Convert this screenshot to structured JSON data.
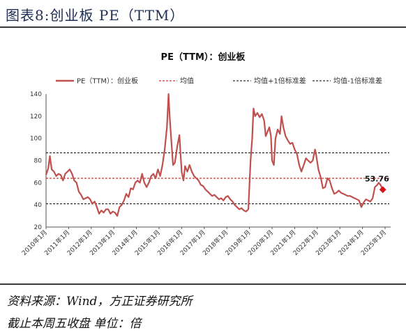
{
  "figure": {
    "title": "图表8:创业板 PE（TTM）",
    "source": "资料来源：Wind，方正证券研究所",
    "note": "截止本周五收盘  单位：倍"
  },
  "chart_data": {
    "type": "line",
    "title": "PE（TTM）：创业板",
    "xlabel": "",
    "ylabel": "",
    "ylim": [
      20,
      140
    ],
    "yticks": [
      20,
      40,
      60,
      80,
      100,
      120,
      140
    ],
    "xticks": [
      "2010年1月",
      "2011年1月",
      "2012年1月",
      "2013年1月",
      "2014年1月",
      "2015年1月",
      "2016年1月",
      "2017年1月",
      "2018年1月",
      "2019年1月",
      "2020年1月",
      "2021年1月",
      "2022年1月",
      "2023年1月",
      "2024年1月",
      "2025年1月"
    ],
    "legend_position": "top",
    "grid": false,
    "series": [
      {
        "name": "PE（TTM）：创业板",
        "color": "#c0504d",
        "points": [
          [
            2010.0,
            67
          ],
          [
            2010.1,
            73
          ],
          [
            2010.17,
            84
          ],
          [
            2010.25,
            72
          ],
          [
            2010.35,
            70
          ],
          [
            2010.45,
            66
          ],
          [
            2010.55,
            68
          ],
          [
            2010.65,
            67
          ],
          [
            2010.75,
            62
          ],
          [
            2010.85,
            68
          ],
          [
            2010.95,
            70
          ],
          [
            2011.05,
            72
          ],
          [
            2011.15,
            68
          ],
          [
            2011.25,
            62
          ],
          [
            2011.35,
            60
          ],
          [
            2011.45,
            52
          ],
          [
            2011.55,
            49
          ],
          [
            2011.65,
            45
          ],
          [
            2011.75,
            46
          ],
          [
            2011.85,
            47
          ],
          [
            2011.95,
            45
          ],
          [
            2012.05,
            41
          ],
          [
            2012.15,
            43
          ],
          [
            2012.25,
            38
          ],
          [
            2012.35,
            32
          ],
          [
            2012.45,
            35
          ],
          [
            2012.55,
            33
          ],
          [
            2012.65,
            36
          ],
          [
            2012.75,
            36
          ],
          [
            2012.85,
            32
          ],
          [
            2012.95,
            34
          ],
          [
            2013.05,
            33
          ],
          [
            2013.15,
            30
          ],
          [
            2013.25,
            38
          ],
          [
            2013.35,
            40
          ],
          [
            2013.45,
            44
          ],
          [
            2013.55,
            50
          ],
          [
            2013.65,
            47
          ],
          [
            2013.75,
            55
          ],
          [
            2013.85,
            54
          ],
          [
            2013.95,
            60
          ],
          [
            2014.05,
            62
          ],
          [
            2014.15,
            60
          ],
          [
            2014.25,
            68
          ],
          [
            2014.35,
            60
          ],
          [
            2014.45,
            56
          ],
          [
            2014.55,
            60
          ],
          [
            2014.65,
            66
          ],
          [
            2014.75,
            68
          ],
          [
            2014.85,
            64
          ],
          [
            2014.95,
            72
          ],
          [
            2015.05,
            66
          ],
          [
            2015.15,
            76
          ],
          [
            2015.25,
            90
          ],
          [
            2015.35,
            110
          ],
          [
            2015.42,
            140
          ],
          [
            2015.47,
            120
          ],
          [
            2015.55,
            96
          ],
          [
            2015.62,
            76
          ],
          [
            2015.7,
            78
          ],
          [
            2015.8,
            92
          ],
          [
            2015.9,
            103
          ],
          [
            2015.95,
            86
          ],
          [
            2016.0,
            70
          ],
          [
            2016.08,
            62
          ],
          [
            2016.15,
            75
          ],
          [
            2016.25,
            70
          ],
          [
            2016.35,
            76
          ],
          [
            2016.45,
            70
          ],
          [
            2016.55,
            66
          ],
          [
            2016.65,
            64
          ],
          [
            2016.75,
            62
          ],
          [
            2016.85,
            58
          ],
          [
            2016.95,
            57
          ],
          [
            2017.05,
            54
          ],
          [
            2017.15,
            52
          ],
          [
            2017.25,
            50
          ],
          [
            2017.35,
            48
          ],
          [
            2017.45,
            49
          ],
          [
            2017.55,
            47
          ],
          [
            2017.65,
            45
          ],
          [
            2017.75,
            46
          ],
          [
            2017.85,
            44
          ],
          [
            2017.95,
            47
          ],
          [
            2018.05,
            48
          ],
          [
            2018.15,
            45
          ],
          [
            2018.25,
            43
          ],
          [
            2018.35,
            40
          ],
          [
            2018.45,
            38
          ],
          [
            2018.55,
            36
          ],
          [
            2018.65,
            37
          ],
          [
            2018.75,
            35
          ],
          [
            2018.85,
            34
          ],
          [
            2018.95,
            36
          ],
          [
            2019.05,
            80
          ],
          [
            2019.12,
            100
          ],
          [
            2019.18,
            127
          ],
          [
            2019.25,
            120
          ],
          [
            2019.35,
            123
          ],
          [
            2019.45,
            119
          ],
          [
            2019.55,
            122
          ],
          [
            2019.65,
            116
          ],
          [
            2019.72,
            102
          ],
          [
            2019.8,
            106
          ],
          [
            2019.88,
            110
          ],
          [
            2019.95,
            102
          ],
          [
            2020.0,
            80
          ],
          [
            2020.08,
            76
          ],
          [
            2020.15,
            100
          ],
          [
            2020.25,
            108
          ],
          [
            2020.35,
            104
          ],
          [
            2020.42,
            120
          ],
          [
            2020.5,
            110
          ],
          [
            2020.6,
            102
          ],
          [
            2020.7,
            98
          ],
          [
            2020.8,
            95
          ],
          [
            2020.9,
            96
          ],
          [
            2021.0,
            90
          ],
          [
            2021.1,
            86
          ],
          [
            2021.2,
            76
          ],
          [
            2021.3,
            70
          ],
          [
            2021.4,
            76
          ],
          [
            2021.5,
            82
          ],
          [
            2021.6,
            80
          ],
          [
            2021.7,
            78
          ],
          [
            2021.8,
            80
          ],
          [
            2021.9,
            90
          ],
          [
            2021.95,
            85
          ],
          [
            2022.05,
            72
          ],
          [
            2022.15,
            65
          ],
          [
            2022.25,
            55
          ],
          [
            2022.35,
            56
          ],
          [
            2022.45,
            64
          ],
          [
            2022.55,
            62
          ],
          [
            2022.65,
            55
          ],
          [
            2022.75,
            50
          ],
          [
            2022.85,
            51
          ],
          [
            2022.95,
            53
          ],
          [
            2023.05,
            51
          ],
          [
            2023.15,
            50
          ],
          [
            2023.25,
            49
          ],
          [
            2023.35,
            48
          ],
          [
            2023.45,
            48
          ],
          [
            2023.55,
            47
          ],
          [
            2023.65,
            46
          ],
          [
            2023.75,
            45
          ],
          [
            2023.85,
            44
          ],
          [
            2023.95,
            38
          ],
          [
            2024.05,
            42
          ],
          [
            2024.15,
            45
          ],
          [
            2024.25,
            44
          ],
          [
            2024.35,
            43
          ],
          [
            2024.45,
            46
          ],
          [
            2024.55,
            56
          ],
          [
            2024.65,
            58
          ],
          [
            2024.72,
            60
          ],
          [
            2024.8,
            58
          ],
          [
            2024.9,
            53.76
          ]
        ],
        "last_value": 53.76,
        "last_label": "53.76"
      },
      {
        "name": "均值",
        "color": "#c00000",
        "dash": "dotted",
        "value": 64
      },
      {
        "name": "均值+1倍标准差",
        "color": "#000000",
        "dash": "dotted",
        "value": 87
      },
      {
        "name": "均值-1倍标准差",
        "color": "#000000",
        "dash": "dotted",
        "value": 41
      }
    ]
  }
}
